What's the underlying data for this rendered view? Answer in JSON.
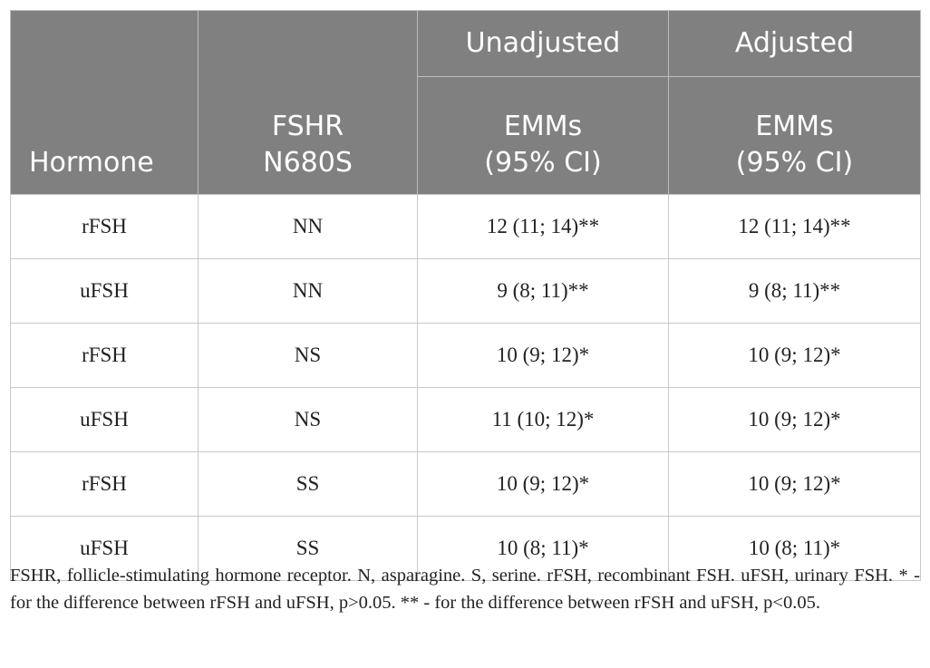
{
  "table": {
    "header": {
      "hormone": "Hormone",
      "fshr": [
        "FSHR",
        "N680S"
      ],
      "unadjusted": "Unadjusted",
      "adjusted": "Adjusted",
      "unadjusted_sub": [
        "EMMs",
        "(95% CI)"
      ],
      "adjusted_sub": [
        "EMMs",
        "(95% CI)"
      ]
    },
    "rows": [
      [
        "rFSH",
        "NN",
        "12 (11; 14)**",
        "12 (11; 14)**"
      ],
      [
        "uFSH",
        "NN",
        "9 (8; 11)**",
        "9 (8; 11)**"
      ],
      [
        "rFSH",
        "NS",
        "10 (9; 12)*",
        "10 (9; 12)*"
      ],
      [
        "uFSH",
        "NS",
        "11 (10; 12)*",
        "10 (9; 12)*"
      ],
      [
        "rFSH",
        "SS",
        "10 (9; 12)*",
        "10 (9; 12)*"
      ],
      [
        "uFSH",
        "SS",
        "10 (8; 11)*",
        "10 (8; 11)*"
      ]
    ],
    "footnote": "FSHR, follicle-stimulating hormone receptor. N, asparagine. S, serine. rFSH, recombinant FSH. uFSH, urinary FSH. * - for the difference between rFSH and uFSH, p>0.05. ** - for the difference between rFSH and uFSH, p<0.05."
  }
}
